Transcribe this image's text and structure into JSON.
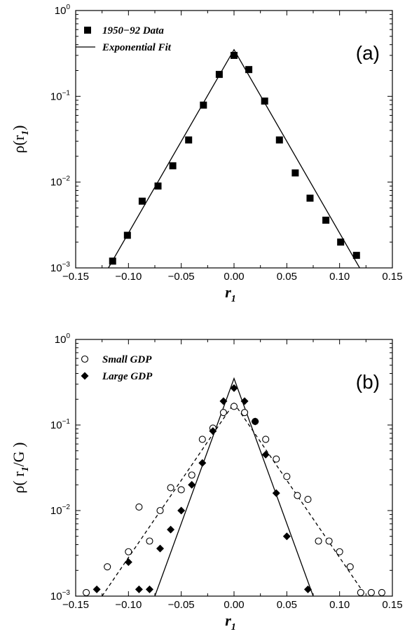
{
  "chart_data": [
    {
      "type": "scatter",
      "panel_label": "(a)",
      "xlabel": "r",
      "xlabel_sub": "1",
      "ylabel": "ρ(r",
      "ylabel_sub": "1",
      "ylabel_close": ")",
      "yscale": "log",
      "xlim": [
        -0.15,
        0.15
      ],
      "ylim": [
        0.001,
        1
      ],
      "x_ticks": [
        "−0.15",
        "−0.10",
        "−0.05",
        "0.00",
        "0.05",
        "0.10",
        "0.15"
      ],
      "y_ticks": [
        {
          "base": "10",
          "exp": "−3"
        },
        {
          "base": "10",
          "exp": "−2"
        },
        {
          "base": "10",
          "exp": "−1"
        },
        {
          "base": "10",
          "exp": "0"
        }
      ],
      "legend": [
        {
          "label": "1950−92 Data",
          "marker": "filled-square"
        },
        {
          "label": "Exponential Fit",
          "marker": "line"
        }
      ],
      "series": [
        {
          "name": "1950−92 Data",
          "marker": "filled-square",
          "x": [
            -0.115,
            -0.101,
            -0.087,
            -0.072,
            -0.058,
            -0.043,
            -0.029,
            -0.014,
            0.0,
            0.014,
            0.029,
            0.043,
            0.058,
            0.072,
            0.087,
            0.101,
            0.116
          ],
          "y": [
            0.0012,
            0.0024,
            0.006,
            0.009,
            0.0155,
            0.031,
            0.079,
            0.18,
            0.3,
            0.205,
            0.088,
            0.031,
            0.0128,
            0.0065,
            0.0036,
            0.002,
            0.0014
          ]
        },
        {
          "name": "Exponential Fit",
          "style": "solid",
          "x": [
            -0.119,
            0.0,
            0.119
          ],
          "y": [
            0.001,
            0.35,
            0.001
          ]
        }
      ]
    },
    {
      "type": "scatter",
      "panel_label": "(b)",
      "xlabel": "r",
      "xlabel_sub": "1",
      "ylabel": "ρ( r",
      "ylabel_sub": "1",
      "ylabel_close": "/G )",
      "yscale": "log",
      "xlim": [
        -0.15,
        0.15
      ],
      "ylim": [
        0.001,
        1
      ],
      "x_ticks": [
        "−0.15",
        "−0.10",
        "−0.05",
        "0.00",
        "0.05",
        "0.10",
        "0.15"
      ],
      "y_ticks": [
        {
          "base": "10",
          "exp": "−3"
        },
        {
          "base": "10",
          "exp": "−2"
        },
        {
          "base": "10",
          "exp": "−1"
        },
        {
          "base": "10",
          "exp": "0"
        }
      ],
      "legend": [
        {
          "label": "Small GDP",
          "marker": "open-circle"
        },
        {
          "label": "Large GDP",
          "marker": "filled-diamond"
        }
      ],
      "series": [
        {
          "name": "Small GDP",
          "marker": "open-circle",
          "x": [
            -0.14,
            -0.12,
            -0.1,
            -0.09,
            -0.08,
            -0.07,
            -0.06,
            -0.05,
            -0.04,
            -0.03,
            -0.02,
            -0.01,
            0.0,
            0.01,
            0.02,
            0.03,
            0.04,
            0.05,
            0.06,
            0.07,
            0.08,
            0.09,
            0.1,
            0.11,
            0.12,
            0.13,
            0.14
          ],
          "y": [
            0.0011,
            0.0022,
            0.0033,
            0.011,
            0.0044,
            0.01,
            0.0185,
            0.0175,
            0.026,
            0.068,
            0.092,
            0.14,
            0.165,
            0.14,
            0.11,
            0.068,
            0.04,
            0.025,
            0.015,
            0.0135,
            0.0044,
            0.0044,
            0.0033,
            0.0022,
            0.0011,
            0.0011,
            0.0011
          ]
        },
        {
          "name": "Large GDP",
          "marker": "filled-diamond",
          "x": [
            -0.13,
            -0.1,
            -0.09,
            -0.08,
            -0.07,
            -0.06,
            -0.05,
            -0.04,
            -0.03,
            -0.02,
            -0.01,
            0.0,
            0.01,
            0.02,
            0.03,
            0.04,
            0.05,
            0.07
          ],
          "y": [
            0.0012,
            0.0025,
            0.0012,
            0.0012,
            0.0036,
            0.006,
            0.01,
            0.02,
            0.036,
            0.085,
            0.19,
            0.27,
            0.19,
            0.11,
            0.045,
            0.016,
            0.005,
            0.0012
          ]
        },
        {
          "name": "Small GDP fit",
          "style": "dashed",
          "x": [
            -0.125,
            0.0,
            0.125
          ],
          "y": [
            0.001,
            0.18,
            0.001
          ]
        },
        {
          "name": "Large GDP fit",
          "style": "solid",
          "x": [
            -0.075,
            0.0,
            0.075
          ],
          "y": [
            0.001,
            0.35,
            0.001
          ]
        }
      ]
    }
  ]
}
